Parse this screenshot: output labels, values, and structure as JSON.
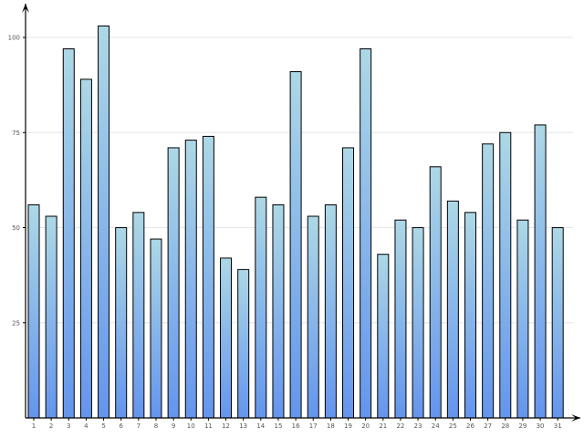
{
  "chart_data": {
    "type": "bar",
    "title": "",
    "xlabel": "",
    "ylabel": "",
    "categories": [
      "1",
      "2",
      "3",
      "4",
      "5",
      "6",
      "7",
      "8",
      "9",
      "10",
      "11",
      "12",
      "13",
      "14",
      "15",
      "16",
      "17",
      "18",
      "19",
      "20",
      "21",
      "22",
      "23",
      "24",
      "25",
      "26",
      "27",
      "28",
      "29",
      "30",
      "31"
    ],
    "values": [
      56,
      53,
      97,
      89,
      103,
      50,
      54,
      47,
      71,
      73,
      74,
      42,
      39,
      58,
      56,
      91,
      53,
      56,
      71,
      97,
      43,
      52,
      50,
      66,
      57,
      54,
      72,
      75,
      52,
      77,
      50
    ],
    "ylim": [
      0,
      106
    ],
    "yticks": [
      25,
      50,
      75,
      100
    ],
    "grid": true,
    "legend": "none",
    "colors": {
      "bar_top": "#add8e6",
      "bar_bottom": "#6495ed",
      "bar_border": "#000000",
      "grid": "#e6e6e6",
      "axis": "#000000"
    }
  }
}
